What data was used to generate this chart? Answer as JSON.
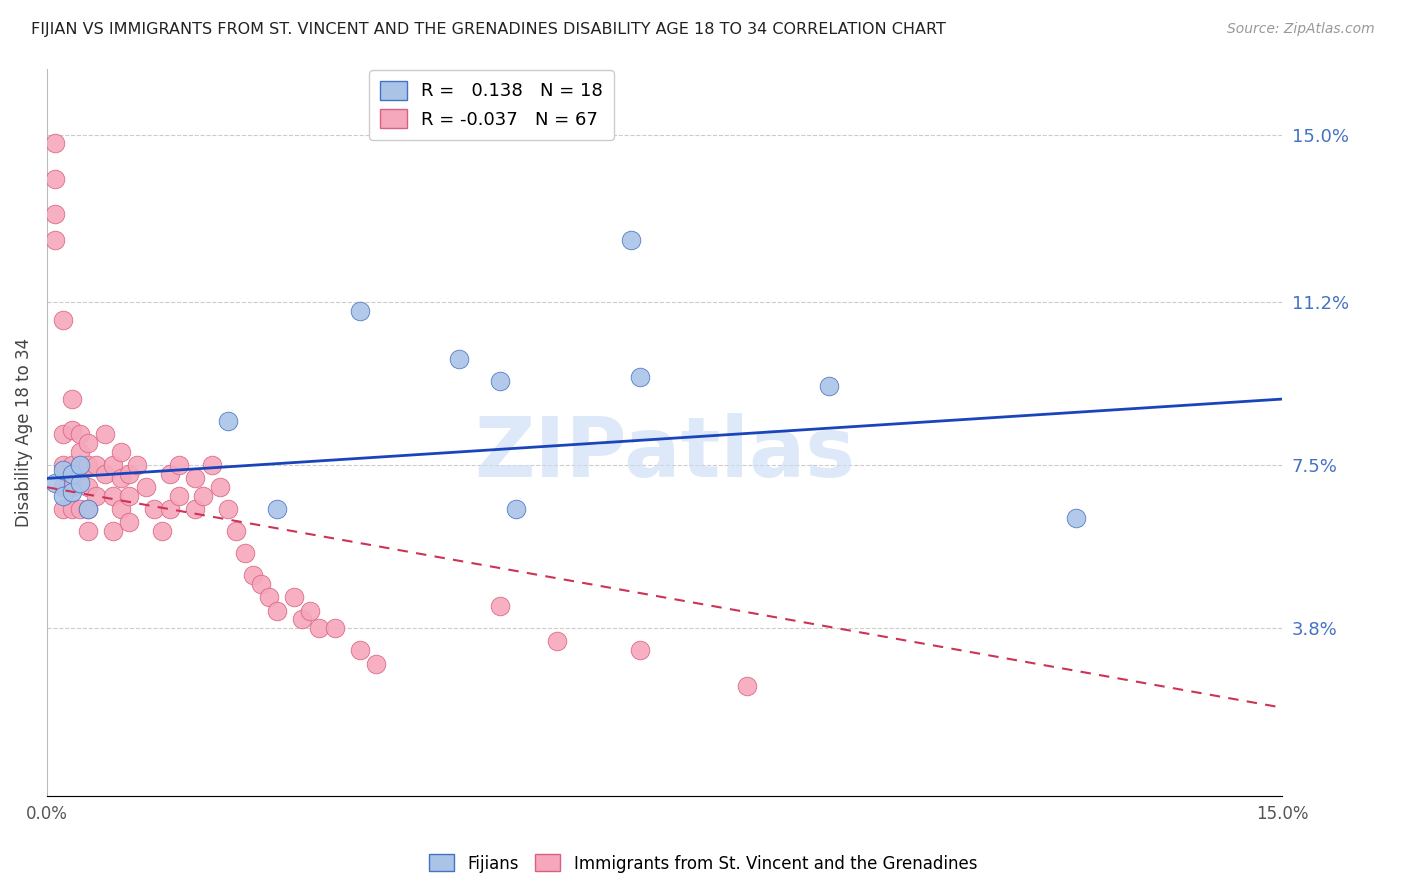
{
  "title": "FIJIAN VS IMMIGRANTS FROM ST. VINCENT AND THE GRENADINES DISABILITY AGE 18 TO 34 CORRELATION CHART",
  "source": "Source: ZipAtlas.com",
  "ylabel": "Disability Age 18 to 34",
  "ylabel_right_labels": [
    "15.0%",
    "11.2%",
    "7.5%",
    "3.8%"
  ],
  "ylabel_right_values": [
    0.15,
    0.112,
    0.075,
    0.038
  ],
  "x_min": 0.0,
  "x_max": 0.15,
  "y_min": 0.0,
  "y_max": 0.165,
  "legend_blue_r": "0.138",
  "legend_blue_n": "18",
  "legend_pink_r": "-0.037",
  "legend_pink_n": "67",
  "fijian_color": "#aac4e8",
  "immigrant_color": "#f5a8bc",
  "fijian_edge_color": "#4472c4",
  "immigrant_edge_color": "#d96080",
  "trend_blue_color": "#1a44bb",
  "trend_pink_color": "#cc3355",
  "watermark_color": "#ccddf5",
  "fijian_x": [
    0.001,
    0.002,
    0.002,
    0.003,
    0.003,
    0.004,
    0.004,
    0.005,
    0.022,
    0.028,
    0.038,
    0.05,
    0.055,
    0.057,
    0.071,
    0.072,
    0.095,
    0.125
  ],
  "fijian_y": [
    0.071,
    0.074,
    0.068,
    0.069,
    0.073,
    0.075,
    0.071,
    0.065,
    0.085,
    0.065,
    0.11,
    0.099,
    0.094,
    0.065,
    0.126,
    0.095,
    0.093,
    0.063
  ],
  "immigrant_x": [
    0.001,
    0.001,
    0.001,
    0.001,
    0.002,
    0.002,
    0.002,
    0.002,
    0.002,
    0.003,
    0.003,
    0.003,
    0.003,
    0.003,
    0.004,
    0.004,
    0.004,
    0.004,
    0.005,
    0.005,
    0.005,
    0.005,
    0.005,
    0.006,
    0.006,
    0.007,
    0.007,
    0.008,
    0.008,
    0.008,
    0.009,
    0.009,
    0.009,
    0.01,
    0.01,
    0.01,
    0.011,
    0.012,
    0.013,
    0.014,
    0.015,
    0.015,
    0.016,
    0.016,
    0.018,
    0.018,
    0.019,
    0.02,
    0.021,
    0.022,
    0.023,
    0.024,
    0.025,
    0.026,
    0.027,
    0.028,
    0.03,
    0.031,
    0.032,
    0.033,
    0.035,
    0.038,
    0.04,
    0.055,
    0.062,
    0.072,
    0.085
  ],
  "immigrant_y": [
    0.148,
    0.14,
    0.132,
    0.126,
    0.108,
    0.082,
    0.075,
    0.07,
    0.065,
    0.09,
    0.083,
    0.075,
    0.07,
    0.065,
    0.082,
    0.078,
    0.073,
    0.065,
    0.08,
    0.075,
    0.07,
    0.065,
    0.06,
    0.075,
    0.068,
    0.082,
    0.073,
    0.075,
    0.068,
    0.06,
    0.078,
    0.072,
    0.065,
    0.073,
    0.068,
    0.062,
    0.075,
    0.07,
    0.065,
    0.06,
    0.073,
    0.065,
    0.075,
    0.068,
    0.072,
    0.065,
    0.068,
    0.075,
    0.07,
    0.065,
    0.06,
    0.055,
    0.05,
    0.048,
    0.045,
    0.042,
    0.045,
    0.04,
    0.042,
    0.038,
    0.038,
    0.033,
    0.03,
    0.043,
    0.035,
    0.033,
    0.025
  ]
}
